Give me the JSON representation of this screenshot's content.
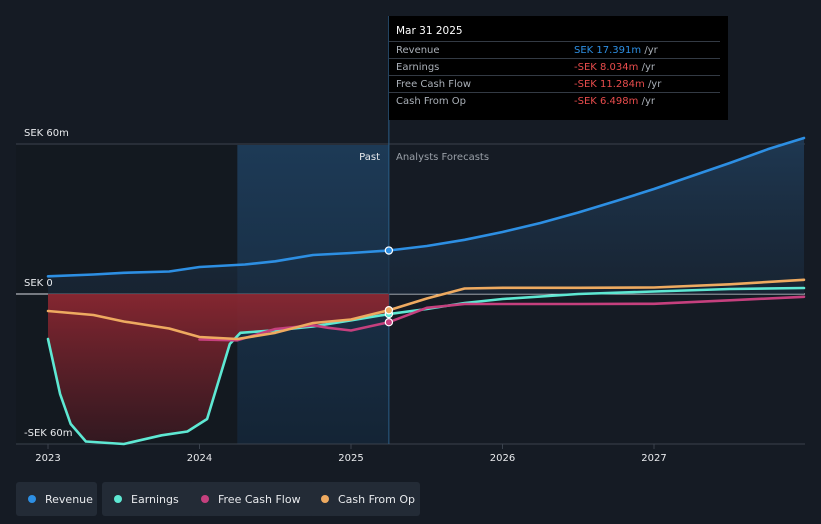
{
  "chart_data": {
    "type": "line",
    "y_axis": {
      "top_label": "SEK 60m",
      "zero_label": "SEK 0",
      "bottom_label": "-SEK 60m",
      "ylim": [
        -60,
        60
      ]
    },
    "x_ticks": [
      "2023",
      "2024",
      "2025",
      "2026",
      "2027"
    ],
    "region_labels": {
      "past": "Past",
      "forecast": "Analysts Forecasts"
    },
    "series": [
      {
        "name": "Revenue",
        "color": "#2d8fe3",
        "points": [
          [
            2023.0,
            7.1
          ],
          [
            2023.3,
            7.8
          ],
          [
            2023.5,
            8.5
          ],
          [
            2023.8,
            9.0
          ],
          [
            2024.0,
            10.8
          ],
          [
            2024.3,
            11.8
          ],
          [
            2024.5,
            13.1
          ],
          [
            2024.75,
            15.6
          ],
          [
            2025.0,
            16.4
          ],
          [
            2025.25,
            17.391
          ],
          [
            2025.5,
            19.2
          ],
          [
            2025.75,
            21.7
          ],
          [
            2026.0,
            24.8
          ],
          [
            2026.25,
            28.4
          ],
          [
            2026.5,
            32.6
          ],
          [
            2026.75,
            37.2
          ],
          [
            2027.0,
            42.0
          ],
          [
            2027.25,
            47.2
          ],
          [
            2027.5,
            52.4
          ],
          [
            2027.75,
            57.9
          ],
          [
            2027.99,
            62.4
          ]
        ]
      },
      {
        "name": "Earnings",
        "color": "#5ee8d3",
        "points": [
          [
            2023.0,
            -18.0
          ],
          [
            2023.08,
            -40.0
          ],
          [
            2023.15,
            -52.0
          ],
          [
            2023.25,
            -59.0
          ],
          [
            2023.5,
            -60.0
          ],
          [
            2023.75,
            -56.5
          ],
          [
            2023.92,
            -55.0
          ],
          [
            2024.05,
            -50.0
          ],
          [
            2024.2,
            -20.0
          ],
          [
            2024.27,
            -15.5
          ],
          [
            2024.5,
            -14.5
          ],
          [
            2024.75,
            -13.0
          ],
          [
            2025.0,
            -10.5
          ],
          [
            2025.25,
            -8.034
          ],
          [
            2025.5,
            -6.0
          ],
          [
            2025.75,
            -3.6
          ],
          [
            2026.0,
            -2.0
          ],
          [
            2026.5,
            0.0
          ],
          [
            2027.0,
            1.0
          ],
          [
            2027.5,
            2.0
          ],
          [
            2027.99,
            2.4
          ]
        ]
      },
      {
        "name": "Free Cash Flow",
        "color": "#c5407e",
        "points": [
          [
            2024.0,
            -18.2
          ],
          [
            2024.25,
            -18.5
          ],
          [
            2024.5,
            -14.0
          ],
          [
            2024.75,
            -12.5
          ],
          [
            2024.85,
            -13.5
          ],
          [
            2025.0,
            -14.6
          ],
          [
            2025.25,
            -11.284
          ],
          [
            2025.5,
            -5.5
          ],
          [
            2025.75,
            -4.0
          ],
          [
            2026.0,
            -4.0
          ],
          [
            2026.5,
            -4.0
          ],
          [
            2027.0,
            -3.9
          ],
          [
            2027.5,
            -2.5
          ],
          [
            2027.99,
            -1.1
          ]
        ]
      },
      {
        "name": "Cash From Op",
        "color": "#eeaa60",
        "points": [
          [
            2023.0,
            -6.8
          ],
          [
            2023.3,
            -8.4
          ],
          [
            2023.5,
            -11.0
          ],
          [
            2023.8,
            -13.8
          ],
          [
            2024.0,
            -17.2
          ],
          [
            2024.25,
            -18.0
          ],
          [
            2024.5,
            -15.5
          ],
          [
            2024.75,
            -11.6
          ],
          [
            2025.0,
            -10.2
          ],
          [
            2025.25,
            -6.498
          ],
          [
            2025.5,
            -1.8
          ],
          [
            2025.75,
            2.2
          ],
          [
            2026.0,
            2.5
          ],
          [
            2026.5,
            2.5
          ],
          [
            2027.0,
            2.6
          ],
          [
            2027.5,
            3.9
          ],
          [
            2027.99,
            5.7
          ]
        ]
      }
    ],
    "highlight_x": 2025.25,
    "past_shade_start": 2024.25
  },
  "tooltip": {
    "date": "Mar 31 2025",
    "rows": [
      {
        "name": "Revenue",
        "value": "SEK 17.391m",
        "unit": "/yr",
        "color": "#2d8fe3"
      },
      {
        "name": "Earnings",
        "value": "-SEK 8.034m",
        "unit": "/yr",
        "color": "#e84c4c"
      },
      {
        "name": "Free Cash Flow",
        "value": "-SEK 11.284m",
        "unit": "/yr",
        "color": "#e84c4c"
      },
      {
        "name": "Cash From Op",
        "value": "-SEK 6.498m",
        "unit": "/yr",
        "color": "#e84c4c"
      }
    ]
  },
  "legend": [
    {
      "label": "Revenue",
      "color": "#2d8fe3"
    },
    {
      "label": "Earnings",
      "color": "#5ee8d3"
    },
    {
      "label": "Free Cash Flow",
      "color": "#c5407e"
    },
    {
      "label": "Cash From Op",
      "color": "#eeaa60"
    }
  ]
}
